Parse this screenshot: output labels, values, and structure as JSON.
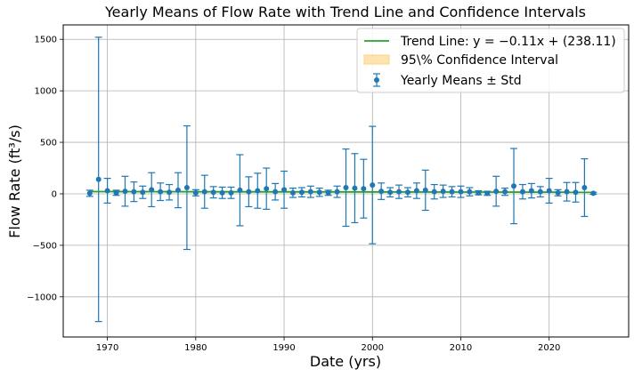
{
  "chart_data": {
    "type": "scatter",
    "title": "Yearly Means of Flow Rate with Trend Line and Confidence Intervals",
    "xlabel": "Date (yrs)",
    "ylabel": "Flow Rate (ft³/s)",
    "xlim": [
      1965,
      2029
    ],
    "ylim": [
      -1390,
      1640
    ],
    "x_ticks": [
      1970,
      1980,
      1990,
      2000,
      2010,
      2020
    ],
    "x_tick_labels": [
      "1970",
      "1980",
      "1990",
      "2000",
      "2010",
      "2020"
    ],
    "y_ticks": [
      -1000,
      -500,
      0,
      500,
      1000,
      1500
    ],
    "y_tick_labels": [
      "−1000",
      "−500",
      "0",
      "500",
      "1000",
      "1500"
    ],
    "grid": true,
    "legend_position": "top-right",
    "legend": [
      "Trend Line: y = −0.11x + (238.11)",
      "95\\% Confidence Interval",
      "Yearly Means ± Std"
    ],
    "colors": {
      "points": "#1f77b4",
      "trend": "#2ca02c",
      "ci": "#ffd27f"
    },
    "trend_line": {
      "slope": -0.11,
      "intercept": 238.11
    },
    "series": [
      {
        "x": [
          1968,
          1969,
          1970,
          1971,
          1972,
          1973,
          1974,
          1975,
          1976,
          1977,
          1978,
          1979,
          1980,
          1981,
          1982,
          1983,
          1984,
          1985,
          1986,
          1987,
          1988,
          1989,
          1990,
          1991,
          1992,
          1993,
          1994,
          1995,
          1996,
          1997,
          1998,
          1999,
          2000,
          2001,
          2002,
          2003,
          2004,
          2005,
          2006,
          2007,
          2008,
          2009,
          2010,
          2011,
          2012,
          2013,
          2014,
          2015,
          2016,
          2017,
          2018,
          2019,
          2020,
          2021,
          2022,
          2023,
          2024,
          2025
        ],
        "y": [
          5,
          140,
          30,
          10,
          25,
          20,
          15,
          40,
          20,
          15,
          35,
          60,
          10,
          20,
          15,
          10,
          10,
          35,
          20,
          30,
          50,
          20,
          40,
          10,
          15,
          20,
          15,
          10,
          20,
          60,
          55,
          50,
          85,
          25,
          15,
          20,
          15,
          30,
          35,
          20,
          25,
          20,
          20,
          20,
          10,
          5,
          25,
          20,
          75,
          20,
          30,
          20,
          30,
          10,
          20,
          15,
          60,
          5
        ],
        "std": [
          30,
          1380,
          120,
          25,
          145,
          95,
          60,
          165,
          85,
          75,
          170,
          600,
          30,
          160,
          55,
          55,
          55,
          345,
          145,
          170,
          200,
          80,
          180,
          45,
          45,
          55,
          40,
          25,
          55,
          375,
          335,
          285,
          570,
          80,
          45,
          65,
          45,
          75,
          195,
          70,
          60,
          50,
          55,
          40,
          20,
          20,
          145,
          35,
          365,
          70,
          70,
          50,
          120,
          30,
          90,
          95,
          280,
          10
        ]
      }
    ]
  }
}
